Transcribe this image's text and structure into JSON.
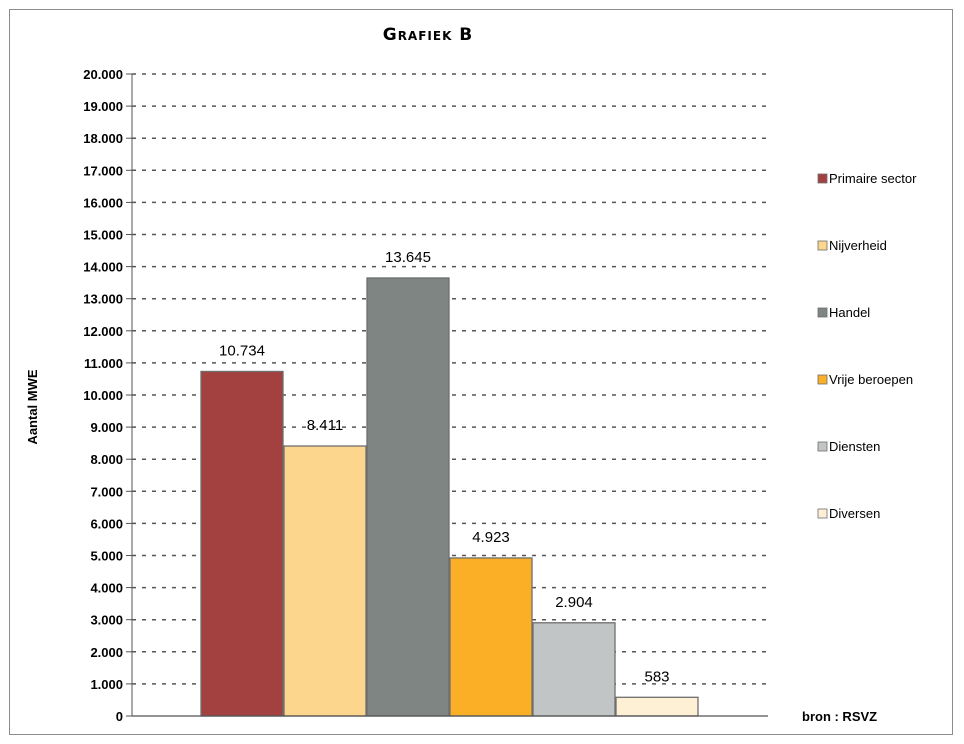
{
  "chart_data": {
    "type": "bar",
    "title": "Grafiek B",
    "ylabel": "Aantal MWE",
    "xlabel": "",
    "ylim": [
      0,
      20000
    ],
    "ytick_step": 1000,
    "ytick_labels": [
      "0",
      "1.000",
      "2.000",
      "3.000",
      "4.000",
      "5.000",
      "6.000",
      "7.000",
      "8.000",
      "9.000",
      "10.000",
      "11.000",
      "12.000",
      "13.000",
      "14.000",
      "15.000",
      "16.000",
      "17.000",
      "18.000",
      "19.000",
      "20.000"
    ],
    "grid": true,
    "legend_position": "right",
    "categories": [
      "Primaire sector",
      "Nijverheid",
      "Handel",
      "Vrije beroepen",
      "Diensten",
      "Diversen"
    ],
    "values": [
      10734,
      8411,
      13645,
      4923,
      2904,
      583
    ],
    "value_labels": [
      "10.734",
      "8.411",
      "13.645",
      "4.923",
      "2.904",
      "583"
    ],
    "colors": [
      "#a34141",
      "#fcd68c",
      "#7f8582",
      "#fbaf27",
      "#c2c5c5",
      "#fdf0d4"
    ],
    "source": "bron : RSVZ"
  }
}
